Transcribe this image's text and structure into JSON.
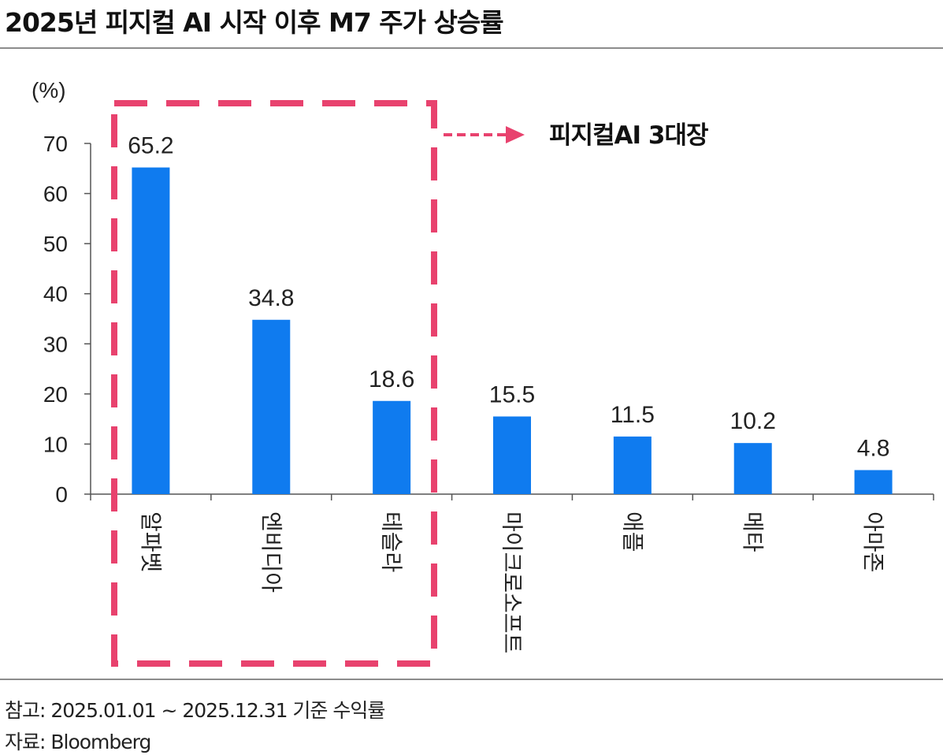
{
  "header": {
    "title": "2025년 피지컬 AI 시작 이후 M7 주가 상승률"
  },
  "callout": {
    "label": "피지컬AI 3대장",
    "color": "#e8426e"
  },
  "chart_data": {
    "type": "bar",
    "ylabel": "(%)",
    "ylim": [
      0,
      70
    ],
    "yticks": [
      0,
      10,
      20,
      30,
      40,
      50,
      60,
      70
    ],
    "categories": [
      "알파벳",
      "엔비디아",
      "테슬라",
      "마이크로소프트",
      "애플",
      "메타",
      "아마존"
    ],
    "values": [
      65.2,
      34.8,
      18.6,
      15.5,
      11.5,
      10.2,
      4.8
    ],
    "value_labels": [
      "65.2",
      "34.8",
      "18.6",
      "15.5",
      "11.5",
      "10.2",
      "4.8"
    ],
    "bar_color": "#0f7bef",
    "grid": false,
    "highlight_range": [
      0,
      2
    ]
  },
  "footer": {
    "note": "참고: 2025.01.01 ~ 2025.12.31 기준 수익률",
    "source": "자료: Bloomberg"
  }
}
